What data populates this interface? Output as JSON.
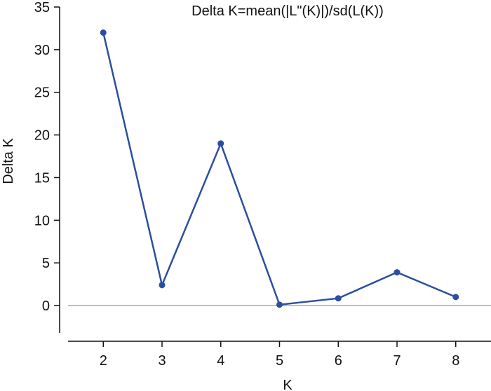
{
  "chart_data": {
    "type": "line",
    "title": "Delta K=mean(|L\"(K)|)/sd(L(K))",
    "x_label": "K",
    "y_label": "Delta K",
    "x": [
      2,
      3,
      4,
      5,
      6,
      7,
      8
    ],
    "series": [
      {
        "name": "Delta K",
        "color": "#2b4f9e",
        "values": [
          32,
          2.4,
          19,
          0.1,
          0.85,
          3.9,
          1.0
        ]
      }
    ],
    "xlim": [
      1.4,
      8.6
    ],
    "xticks": [
      2,
      3,
      4,
      5,
      6,
      7,
      8
    ],
    "ylim": [
      -3.2,
      35
    ],
    "yticks": [
      0,
      5,
      10,
      15,
      20,
      25,
      30,
      35
    ],
    "reference_line": 0,
    "grid": false
  }
}
